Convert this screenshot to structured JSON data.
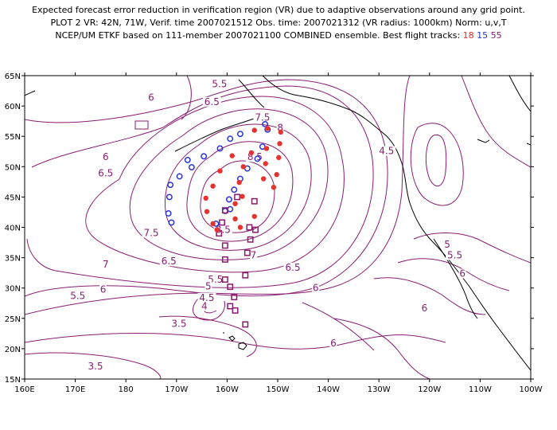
{
  "title": {
    "line1": "Expected forecast error reduction in verification region (VR) due to adaptive observations around any grid point.",
    "line2": "PLOT 2 VR: 42N, 71W, Verif. time 2007021512 Obs. time: 2007021312 (VR radius: 1000km) Norm: u,v,T",
    "line3_prefix": "NCEP/UM ETKF based on 111-member 2007021100 COMBINED ensemble.  Best flight tracks:",
    "track_a": "18",
    "track_b": "15",
    "track_c": "55"
  },
  "colors": {
    "contour": "#8a1d73",
    "track_18": "#e8322e",
    "track_15": "#2a33d6",
    "track_55": "#8b1a6b",
    "coast": "#000000"
  },
  "map": {
    "lon_range": [
      160,
      260
    ],
    "lat_range": [
      15,
      65
    ],
    "lat_ticks": [
      "65N",
      "60N",
      "55N",
      "50N",
      "45N",
      "40N",
      "35N",
      "30N",
      "25N",
      "20N",
      "15N"
    ],
    "lon_ticks": [
      "160E",
      "170E",
      "180",
      "170W",
      "160W",
      "150W",
      "140W",
      "130W",
      "120W",
      "110W",
      "100W"
    ]
  },
  "contour_labels": [
    {
      "text": "5.5",
      "lon": 198.5,
      "lat": 63.2
    },
    {
      "text": "6",
      "lon": 185.0,
      "lat": 61.0
    },
    {
      "text": "6.5",
      "lon": 197.0,
      "lat": 60.3
    },
    {
      "text": "7.5",
      "lon": 207.0,
      "lat": 57.7
    },
    {
      "text": "8",
      "lon": 210.5,
      "lat": 56.0
    },
    {
      "text": "8.5",
      "lon": 205.5,
      "lat": 51.2
    },
    {
      "text": "4.5",
      "lon": 231.5,
      "lat": 52.2
    },
    {
      "text": "6",
      "lon": 176.0,
      "lat": 51.2
    },
    {
      "text": "6.5",
      "lon": 176.0,
      "lat": 48.5
    },
    {
      "text": "7.5",
      "lon": 185.0,
      "lat": 38.7
    },
    {
      "text": "8.5",
      "lon": 199.2,
      "lat": 39.2
    },
    {
      "text": "7",
      "lon": 205.2,
      "lat": 35.0
    },
    {
      "text": "7",
      "lon": 176.0,
      "lat": 33.5
    },
    {
      "text": "6.5",
      "lon": 188.5,
      "lat": 34.0
    },
    {
      "text": "6.5",
      "lon": 213.0,
      "lat": 33.0
    },
    {
      "text": "6",
      "lon": 175.5,
      "lat": 29.4
    },
    {
      "text": "6",
      "lon": 217.5,
      "lat": 29.6
    },
    {
      "text": "5.5",
      "lon": 170.5,
      "lat": 28.3
    },
    {
      "text": "5.5",
      "lon": 197.7,
      "lat": 31.0
    },
    {
      "text": "5",
      "lon": 196.3,
      "lat": 29.9
    },
    {
      "text": "4.5",
      "lon": 196.0,
      "lat": 28.0
    },
    {
      "text": "4",
      "lon": 195.5,
      "lat": 26.6
    },
    {
      "text": "3.5",
      "lon": 190.5,
      "lat": 23.7
    },
    {
      "text": "3.5",
      "lon": 174.0,
      "lat": 16.7
    },
    {
      "text": "6",
      "lon": 221.0,
      "lat": 20.5
    },
    {
      "text": "5",
      "lon": 243.5,
      "lat": 36.8
    },
    {
      "text": "5.5",
      "lon": 245.0,
      "lat": 35.0
    },
    {
      "text": "6",
      "lon": 246.5,
      "lat": 32.0
    },
    {
      "text": "6",
      "lon": 239.0,
      "lat": 26.3
    }
  ],
  "tracks": {
    "t18": [
      [
        210.6,
        55.7
      ],
      [
        208.0,
        56.3
      ],
      [
        205.4,
        56.0
      ],
      [
        210.4,
        53.8
      ],
      [
        207.8,
        53.0
      ],
      [
        204.8,
        52.3
      ],
      [
        201.0,
        51.8
      ],
      [
        210.2,
        51.5
      ],
      [
        207.6,
        50.5
      ],
      [
        203.2,
        50.0
      ],
      [
        198.6,
        49.3
      ],
      [
        209.8,
        48.7
      ],
      [
        207.2,
        48.0
      ],
      [
        202.4,
        47.4
      ],
      [
        197.2,
        46.8
      ],
      [
        209.2,
        46.6
      ],
      [
        203.0,
        45.1
      ],
      [
        195.8,
        44.8
      ],
      [
        201.6,
        43.9
      ],
      [
        196.0,
        42.6
      ],
      [
        205.4,
        41.8
      ],
      [
        201.6,
        41.4
      ],
      [
        197.2,
        40.6
      ],
      [
        202.6,
        40.0
      ],
      [
        198.0,
        39.6
      ]
    ],
    "t15": [
      [
        207.5,
        57.0
      ],
      [
        208.0,
        56.1
      ],
      [
        202.6,
        55.4
      ],
      [
        200.6,
        54.6
      ],
      [
        207.0,
        53.3
      ],
      [
        198.6,
        53.0
      ],
      [
        195.4,
        51.7
      ],
      [
        206.0,
        51.3
      ],
      [
        192.2,
        51.1
      ],
      [
        193.0,
        49.9
      ],
      [
        204.0,
        49.7
      ],
      [
        190.6,
        48.4
      ],
      [
        202.6,
        48.0
      ],
      [
        188.8,
        47.0
      ],
      [
        201.4,
        46.2
      ],
      [
        188.6,
        45.0
      ],
      [
        200.4,
        44.6
      ],
      [
        200.6,
        43.0
      ],
      [
        188.4,
        42.3
      ],
      [
        189.0,
        40.8
      ],
      [
        197.8,
        40.6
      ],
      [
        199.6,
        42.7
      ]
    ],
    "t55": [
      [
        202.0,
        45.0
      ],
      [
        205.4,
        44.3
      ],
      [
        199.6,
        42.8
      ],
      [
        199.0,
        40.8
      ],
      [
        204.4,
        40.0
      ],
      [
        198.4,
        39.0
      ],
      [
        205.6,
        39.6
      ],
      [
        204.6,
        38.0
      ],
      [
        199.6,
        37.0
      ],
      [
        204.0,
        35.8
      ],
      [
        199.6,
        34.7
      ],
      [
        203.6,
        32.1
      ],
      [
        199.6,
        31.4
      ],
      [
        200.6,
        30.2
      ],
      [
        201.4,
        28.5
      ],
      [
        200.6,
        27.0
      ],
      [
        201.6,
        26.3
      ],
      [
        203.6,
        24.0
      ]
    ]
  }
}
